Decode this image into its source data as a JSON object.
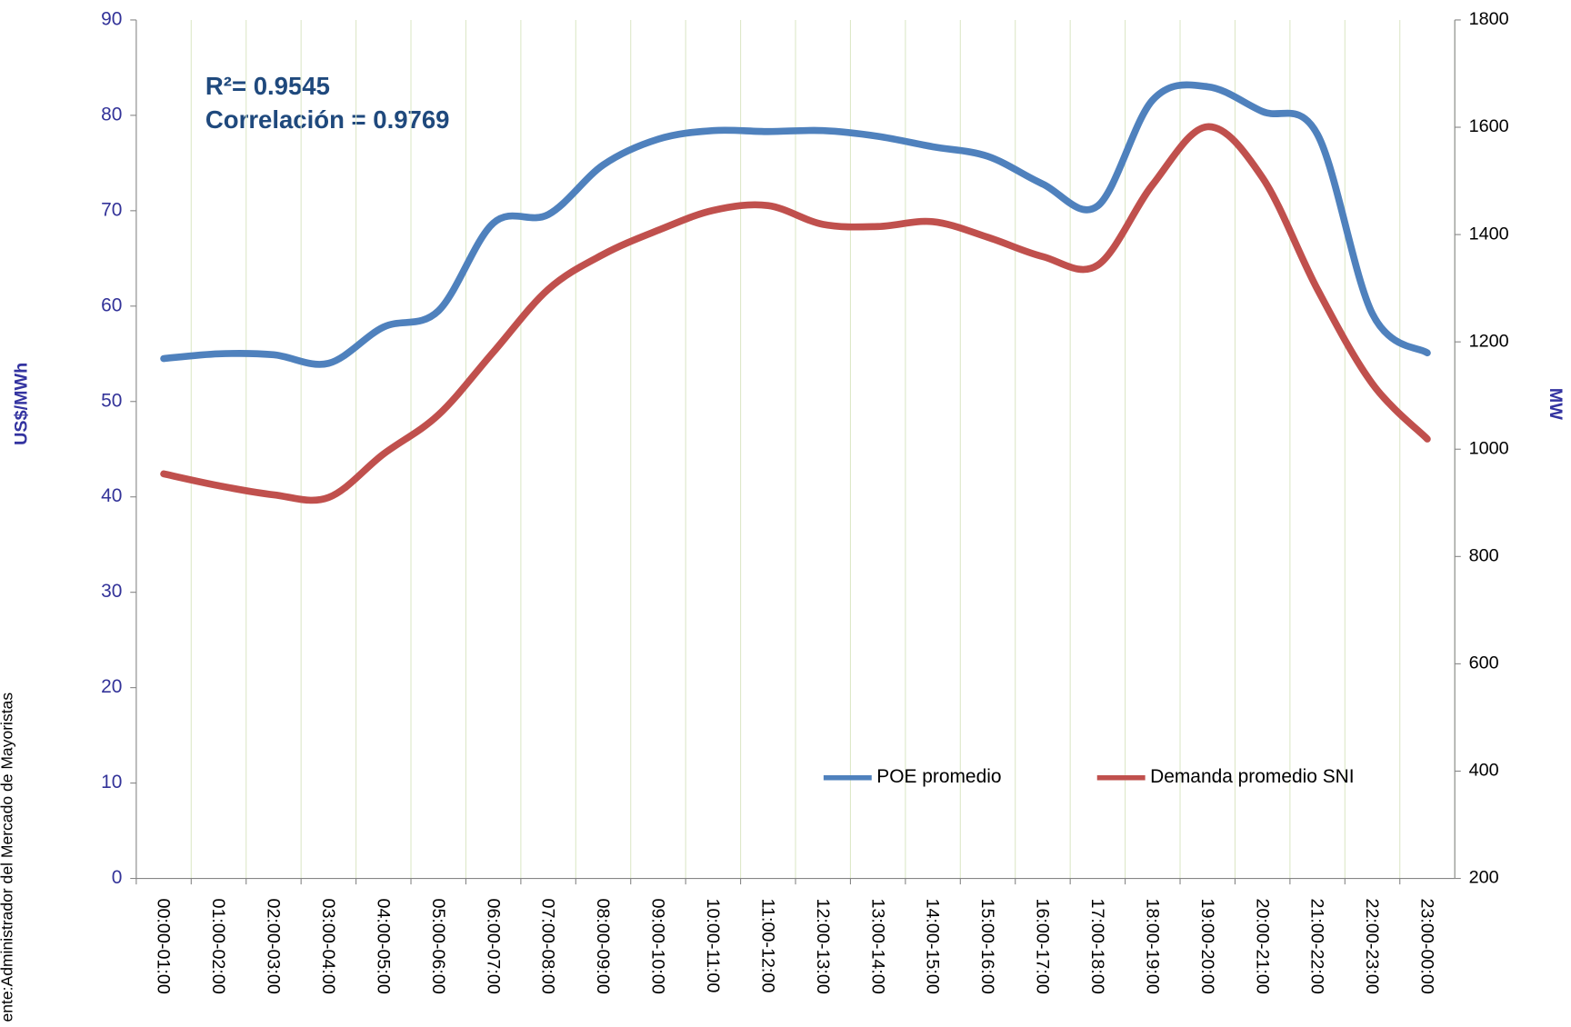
{
  "chart_data": {
    "type": "line",
    "annotations": [
      "R²= 0.9545",
      "Correlación = 0.9769"
    ],
    "ylabel": "US$/MWh",
    "y2label": "MW",
    "source": "ente:Administrador del Mercado de Mayoristas",
    "categories": [
      "00:00-01:00",
      "01:00-02:00",
      "02:00-03:00",
      "03:00-04:00",
      "04:00-05:00",
      "05:00-06:00",
      "06:00-07:00",
      "07:00-08:00",
      "08:00-09:00",
      "09:00-10:00",
      "10:00-11:00",
      "11:00-12:00",
      "12:00-13:00",
      "13:00-14:00",
      "14:00-15:00",
      "15:00-16:00",
      "16:00-17:00",
      "17:00-18:00",
      "18:00-19:00",
      "19:00-20:00",
      "20:00-21:00",
      "21:00-22:00",
      "22:00-23:00",
      "23:00-00:00"
    ],
    "series": [
      {
        "name": "POE promedio",
        "color": "#4f81bd",
        "axis": "y",
        "values": [
          54.5,
          55.0,
          54.9,
          54.0,
          57.8,
          59.5,
          68.7,
          69.6,
          74.8,
          77.5,
          78.4,
          78.3,
          78.4,
          77.8,
          76.7,
          75.7,
          72.8,
          70.5,
          81.6,
          83.0,
          80.4,
          78.0,
          59.2,
          55.1
        ]
      },
      {
        "name": "Demanda promedio SNI",
        "color": "#c0504d",
        "axis": "y2",
        "values": [
          954,
          932,
          915,
          910,
          991,
          1064,
          1181,
          1298,
          1363,
          1408,
          1445,
          1454,
          1419,
          1415,
          1424,
          1395,
          1359,
          1343,
          1493,
          1601,
          1506,
          1298,
          1122,
          1019
        ]
      }
    ],
    "ylim": [
      0,
      90
    ],
    "yticks": [
      0,
      10,
      20,
      30,
      40,
      50,
      60,
      70,
      80,
      90
    ],
    "y2lim": [
      200,
      1800
    ],
    "y2ticks": [
      200,
      400,
      600,
      800,
      1000,
      1200,
      1400,
      1600,
      1800
    ],
    "grid": "x",
    "legend": "lower right"
  }
}
